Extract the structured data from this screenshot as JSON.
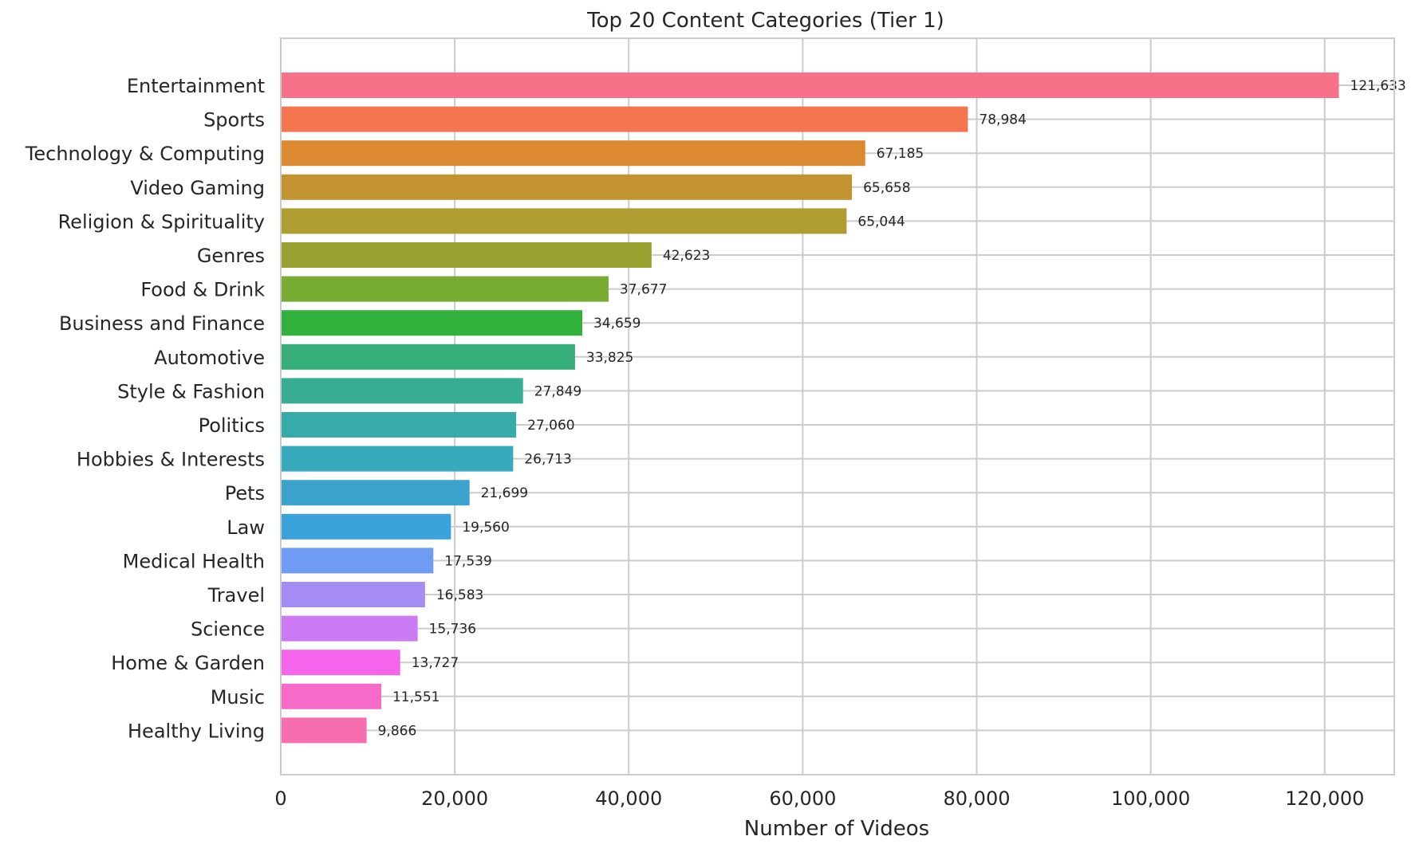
{
  "chart_data": {
    "type": "bar",
    "orientation": "horizontal",
    "title": "Top 20 Content Categories (Tier 1)",
    "xlabel": "Number of Videos",
    "ylabel": "",
    "xlim": [
      0,
      128000
    ],
    "xticks": [
      0,
      20000,
      40000,
      60000,
      80000,
      100000,
      120000
    ],
    "xtick_labels": [
      "0",
      "20,000",
      "40,000",
      "60,000",
      "80,000",
      "100,000",
      "120,000"
    ],
    "grid": true,
    "categories": [
      "Entertainment",
      "Sports",
      "Technology & Computing",
      "Video Gaming",
      "Religion & Spirituality",
      "Genres",
      "Food & Drink",
      "Business and Finance",
      "Automotive",
      "Style & Fashion",
      "Politics",
      "Hobbies & Interests",
      "Pets",
      "Law",
      "Medical Health",
      "Travel",
      "Science",
      "Home & Garden",
      "Music",
      "Healthy Living"
    ],
    "values": [
      121633,
      78984,
      67185,
      65658,
      65044,
      42623,
      37677,
      34659,
      33825,
      27849,
      27060,
      26713,
      21699,
      19560,
      17539,
      16583,
      15736,
      13727,
      11551,
      9866
    ],
    "value_labels": [
      "121,633",
      "78,984",
      "67,185",
      "65,658",
      "65,044",
      "42,623",
      "37,677",
      "34,659",
      "33,825",
      "27,849",
      "27,060",
      "26,713",
      "21,699",
      "19,560",
      "17,539",
      "16,583",
      "15,736",
      "13,727",
      "11,551",
      "9,866"
    ],
    "colors": [
      "#f77189",
      "#f67551",
      "#dc8932",
      "#c39332",
      "#ae9d31",
      "#98a231",
      "#77ab31",
      "#33b13d",
      "#35ae7a",
      "#36ad94",
      "#37abaa",
      "#38aabd",
      "#3ba3cb",
      "#3ba3dc",
      "#6e9bf4",
      "#a48cf4",
      "#cc7af4",
      "#f565eb",
      "#f66bc7",
      "#f66db0"
    ]
  }
}
